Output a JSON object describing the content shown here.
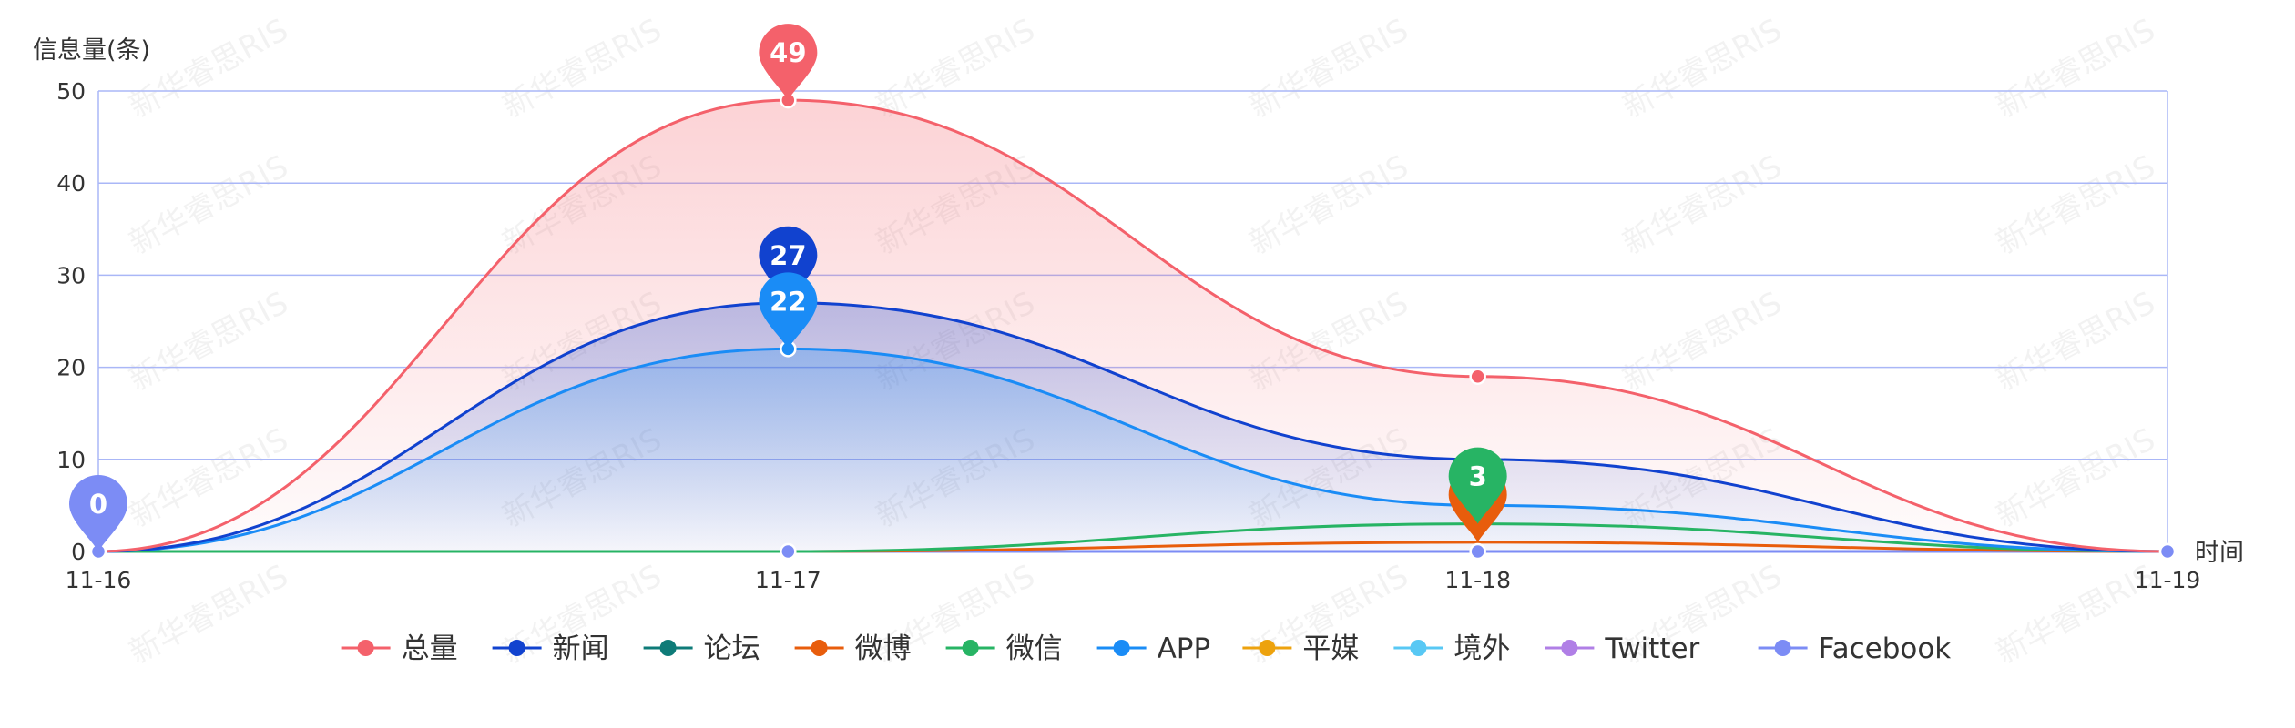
{
  "chart_data": {
    "type": "line",
    "title": "",
    "ylabel": "信息量(条)",
    "xlabel": "时间",
    "categories": [
      "11-16",
      "11-17",
      "11-18",
      "11-19"
    ],
    "ylim": [
      0,
      50
    ],
    "yticks": [
      0,
      10,
      20,
      30,
      40,
      50
    ],
    "grid": true,
    "legend_position": "bottom",
    "series": [
      {
        "name": "总量",
        "color": "#f4616b",
        "values": [
          0,
          49,
          19,
          0
        ],
        "area": true,
        "max_label": true
      },
      {
        "name": "新闻",
        "color": "#1142cf",
        "values": [
          0,
          27,
          10,
          0
        ],
        "area": true,
        "max_label": true
      },
      {
        "name": "论坛",
        "color": "#0e7b78",
        "values": [
          0,
          0,
          0,
          0
        ]
      },
      {
        "name": "微博",
        "color": "#e85d0c",
        "values": [
          0,
          0,
          1,
          0
        ],
        "max_label": true
      },
      {
        "name": "微信",
        "color": "#27b464",
        "values": [
          0,
          0,
          3,
          0
        ],
        "max_label": true
      },
      {
        "name": "APP",
        "color": "#1a8cf6",
        "values": [
          0,
          22,
          5,
          0
        ],
        "area": true,
        "max_label": true
      },
      {
        "name": "平媒",
        "color": "#eda20d",
        "values": [
          0,
          0,
          0,
          0
        ]
      },
      {
        "name": "境外",
        "color": "#58c8f4",
        "values": [
          0,
          0,
          0,
          0
        ]
      },
      {
        "name": "Twitter",
        "color": "#b07fe6",
        "values": [
          0,
          0,
          0,
          0
        ]
      },
      {
        "name": "Facebook",
        "color": "#7c8cf5",
        "values": [
          0,
          0,
          0,
          0
        ],
        "min_label": true
      }
    ],
    "watermark": "新华睿思RIS"
  }
}
